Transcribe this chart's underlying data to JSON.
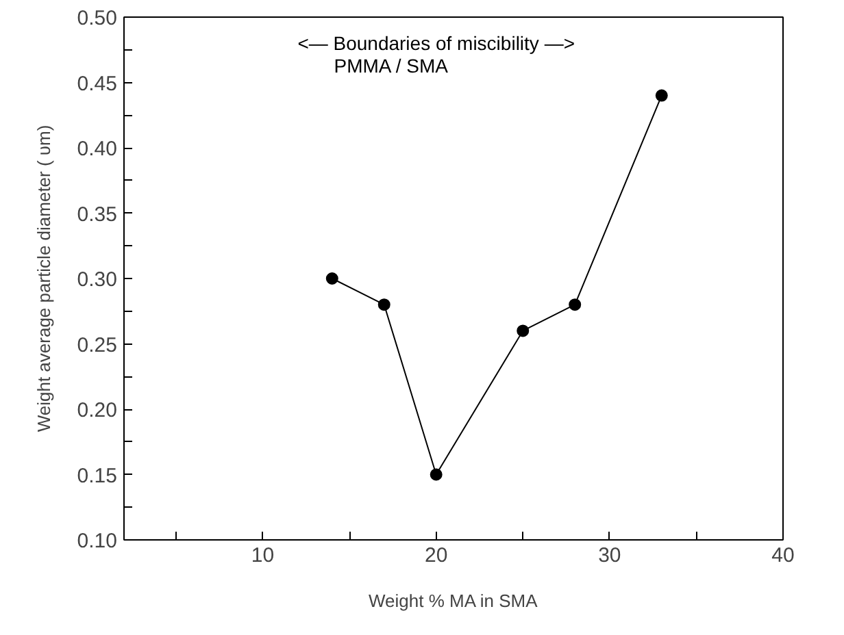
{
  "chart_data": {
    "type": "line",
    "xlabel": "Weight % MA in SMA",
    "ylabel": "Weight average particle diameter ( υm)",
    "x": [
      14,
      17,
      20,
      25,
      28,
      33
    ],
    "series": [
      {
        "color": "#000000",
        "values": [
          0.3,
          0.28,
          0.15,
          0.26,
          0.28,
          0.44
        ]
      }
    ],
    "marker": "circle",
    "line_style": "solid",
    "grid": false,
    "xlim": [
      2,
      40
    ],
    "ylim": [
      0.1,
      0.5
    ],
    "xticks": [
      {
        "value": 5,
        "label": null
      },
      10,
      {
        "value": 15,
        "label": null
      },
      20,
      {
        "value": 25,
        "label": null
      },
      30,
      {
        "value": 35,
        "label": null
      },
      40
    ],
    "yticks": [
      {
        "value": 0.1,
        "label": "0.10"
      },
      {
        "value": 0.125,
        "label": null
      },
      {
        "value": 0.15,
        "label": "0.15"
      },
      {
        "value": 0.175,
        "label": null
      },
      {
        "value": 0.2,
        "label": "0.20"
      },
      {
        "value": 0.225,
        "label": null
      },
      {
        "value": 0.25,
        "label": "0.25"
      },
      {
        "value": 0.275,
        "label": null
      },
      {
        "value": 0.3,
        "label": "0.30"
      },
      {
        "value": 0.325,
        "label": null
      },
      {
        "value": 0.35,
        "label": "0.35"
      },
      {
        "value": 0.375,
        "label": null
      },
      {
        "value": 0.4,
        "label": "0.40"
      },
      {
        "value": 0.425,
        "label": null
      },
      {
        "value": 0.45,
        "label": "0.45"
      },
      {
        "value": 0.475,
        "label": null
      },
      {
        "value": 0.5,
        "label": "0.50"
      }
    ],
    "annotations": [
      "<— Boundaries of miscibility —>",
      "PMMA / SMA"
    ]
  }
}
